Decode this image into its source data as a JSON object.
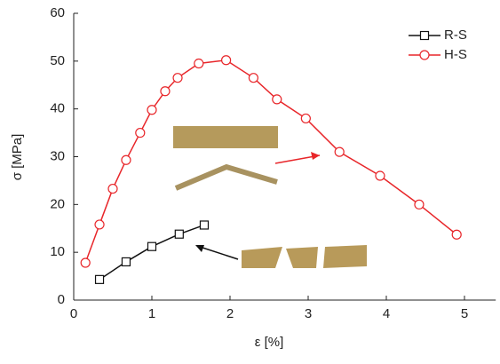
{
  "chart_data": {
    "type": "line",
    "xlabel": "ε [%]",
    "ylabel": "σ [MPa]",
    "xlim": [
      0,
      5.4
    ],
    "ylim": [
      0,
      60
    ],
    "xticks": [
      0,
      1,
      2,
      3,
      4,
      5
    ],
    "yticks": [
      0,
      10,
      20,
      30,
      40,
      50,
      60
    ],
    "legend": "upper right",
    "series": [
      {
        "name": "R-S",
        "color": "#111111",
        "marker": "square",
        "x": [
          0.33,
          0.67,
          1.0,
          1.35,
          1.67
        ],
        "values": [
          4.3,
          8.0,
          11.2,
          13.8,
          15.7
        ]
      },
      {
        "name": "H-S",
        "color": "#e8262a",
        "marker": "circle",
        "x": [
          0.15,
          0.33,
          0.5,
          0.67,
          0.85,
          1.0,
          1.17,
          1.33,
          1.6,
          1.95,
          2.3,
          2.6,
          2.97,
          3.4,
          3.92,
          4.42,
          4.9
        ],
        "values": [
          7.8,
          15.8,
          23.3,
          29.3,
          35.0,
          39.8,
          43.7,
          46.5,
          49.5,
          50.2,
          46.5,
          42.0,
          38.0,
          31.0,
          26.0,
          20.0,
          13.7
        ]
      }
    ]
  }
}
